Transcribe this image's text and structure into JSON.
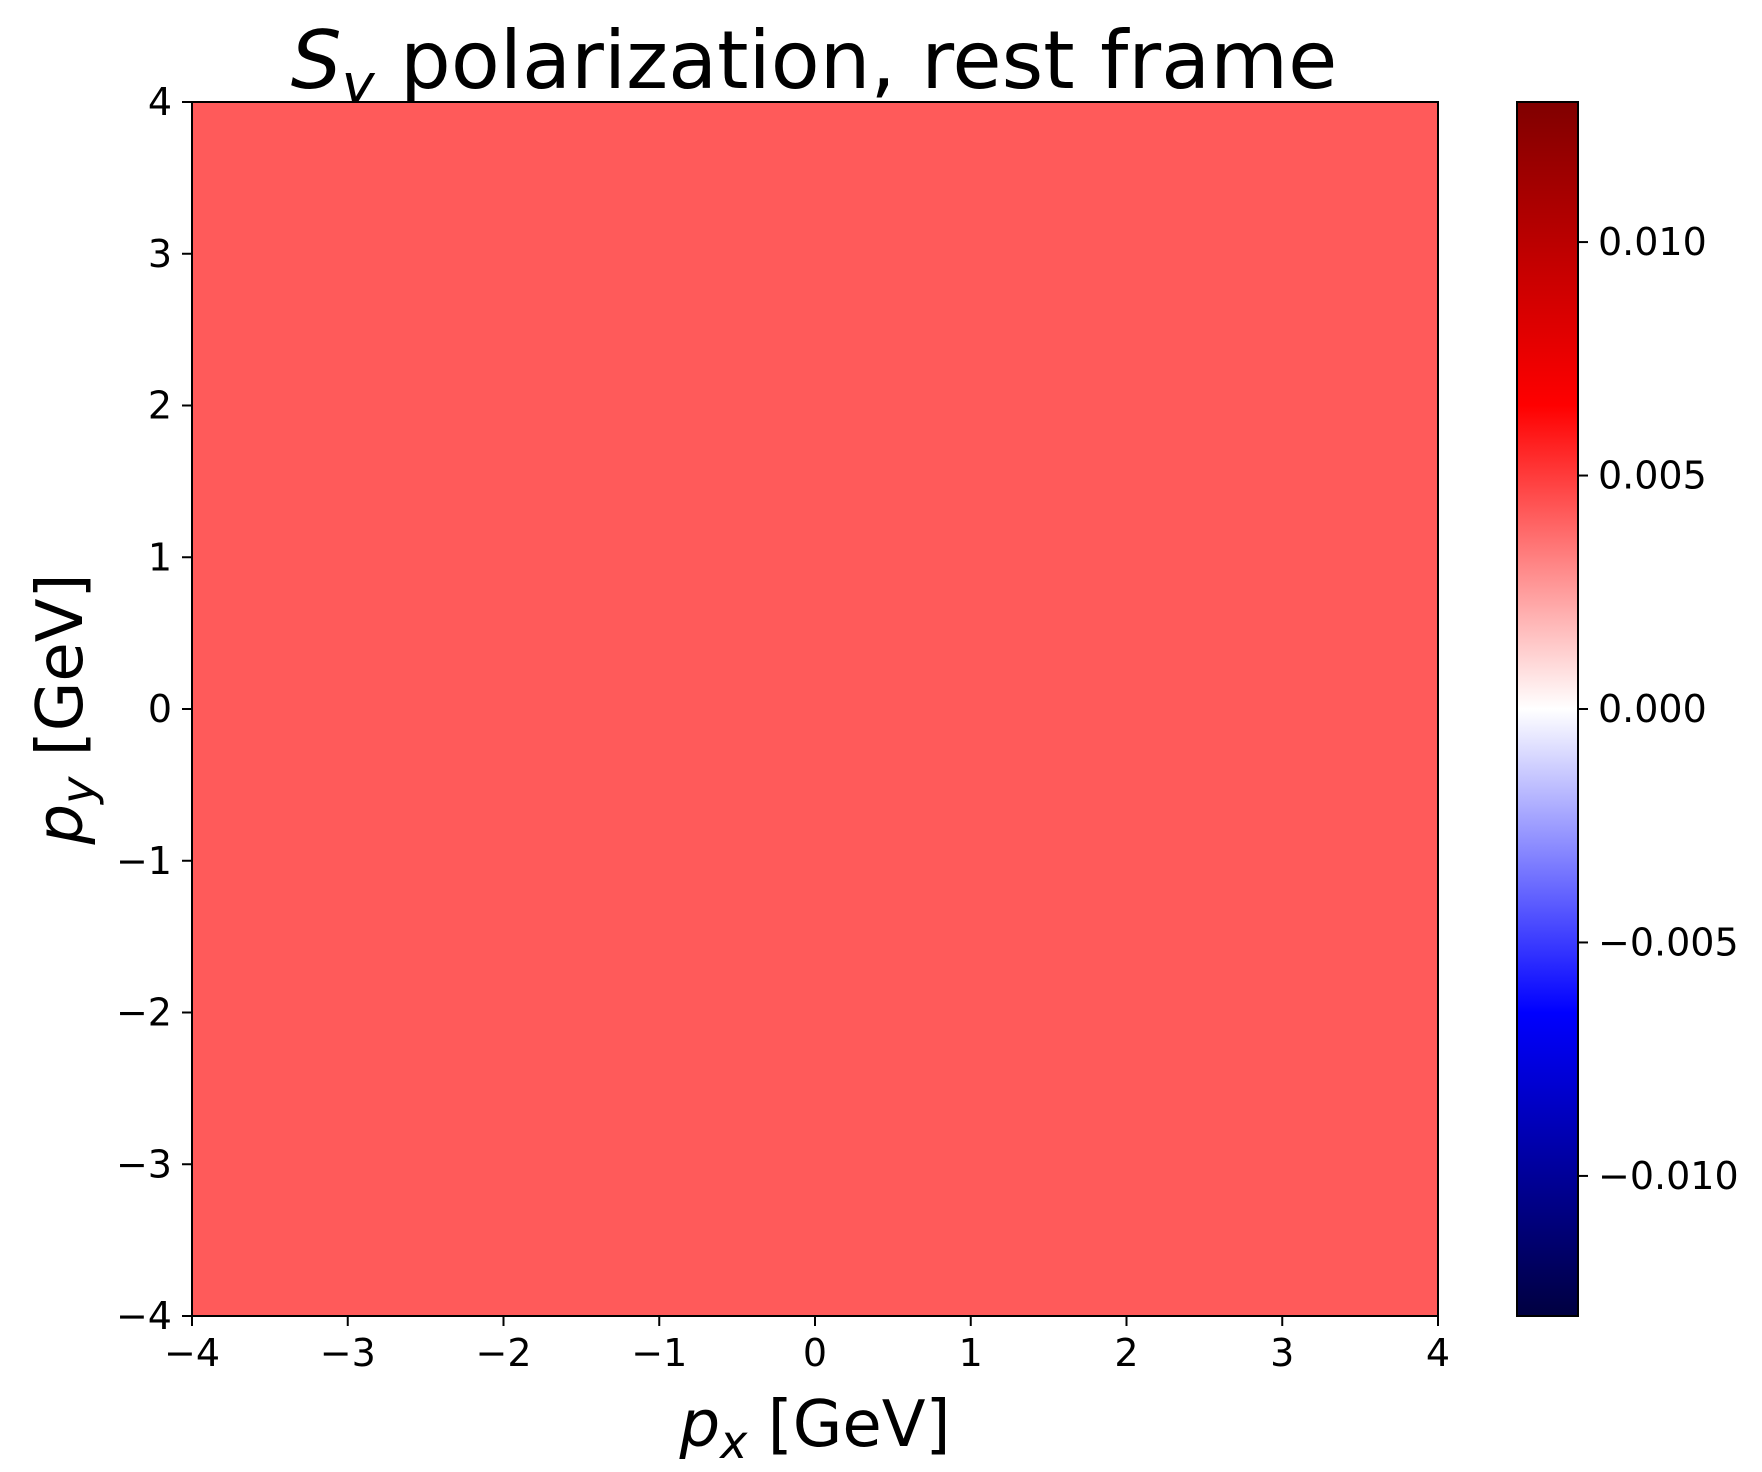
{
  "chart_data": {
    "type": "heatmap",
    "title": {
      "symbol": "S",
      "subscript": "y",
      "rest": " polarization, rest frame"
    },
    "xlabel": {
      "symbol": "p",
      "subscript": "x",
      "unit": " [GeV]"
    },
    "ylabel": {
      "symbol": "p",
      "subscript": "y",
      "unit": " [GeV]"
    },
    "xlim": [
      -4,
      4
    ],
    "ylim": [
      -4,
      4
    ],
    "x_ticks": [
      -4,
      -3,
      -2,
      -1,
      0,
      1,
      2,
      3,
      4
    ],
    "y_ticks": [
      -4,
      -3,
      -2,
      -1,
      0,
      1,
      2,
      3,
      4
    ],
    "x_tick_labels": [
      "−4",
      "−3",
      "−2",
      "−1",
      "0",
      "1",
      "2",
      "3",
      "4"
    ],
    "y_tick_labels": [
      "−4",
      "−3",
      "−2",
      "−1",
      "0",
      "1",
      "2",
      "3",
      "4"
    ],
    "field_value": 0.0048,
    "field_color": "#ff5a5a",
    "colorbar": {
      "colormap": "seismic",
      "vmin": -0.013,
      "vmax": 0.013,
      "ticks": [
        -0.01,
        -0.005,
        0.0,
        0.005,
        0.01
      ],
      "tick_labels": [
        "−0.010",
        "−0.005",
        "0.000",
        "0.005",
        "0.010"
      ],
      "stops": [
        {
          "offset": 0.0,
          "color": "#000040"
        },
        {
          "offset": 0.25,
          "color": "#0000ff"
        },
        {
          "offset": 0.5,
          "color": "#ffffff"
        },
        {
          "offset": 0.75,
          "color": "#ff0000"
        },
        {
          "offset": 1.0,
          "color": "#800000"
        }
      ]
    }
  }
}
